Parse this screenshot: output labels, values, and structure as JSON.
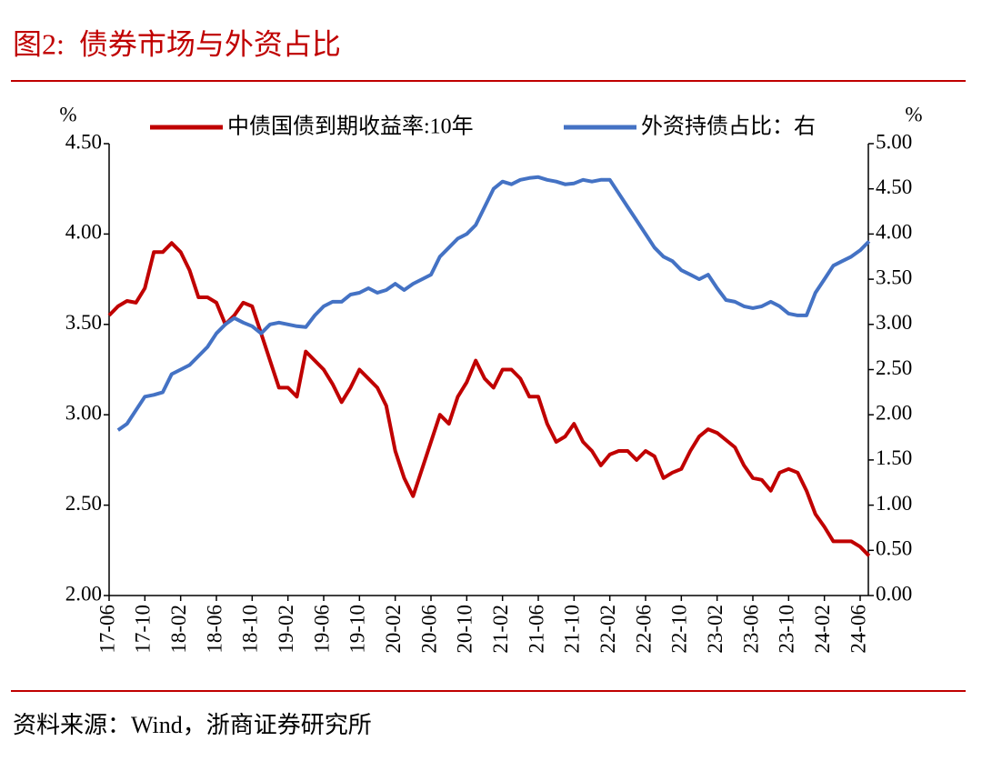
{
  "chart_data": {
    "type": "line",
    "title": "图2:  债券市场与外资占比",
    "source": "资料来源：Wind，浙商证券研究所",
    "ylabel": "%",
    "y2label": "%",
    "categories": [
      "17-06",
      null,
      null,
      null,
      "17-10",
      null,
      null,
      null,
      "18-02",
      null,
      null,
      null,
      "18-06",
      null,
      null,
      null,
      "18-10",
      null,
      null,
      null,
      "19-02",
      null,
      null,
      null,
      "19-06",
      null,
      null,
      null,
      "19-10",
      null,
      null,
      null,
      "20-02",
      null,
      null,
      null,
      "20-06",
      null,
      null,
      null,
      "20-10",
      null,
      null,
      null,
      "21-02",
      null,
      null,
      null,
      "21-06",
      null,
      null,
      null,
      "21-10",
      null,
      null,
      null,
      "22-02",
      null,
      null,
      null,
      "22-06",
      null,
      null,
      null,
      "22-10",
      null,
      null,
      null,
      "23-02",
      null,
      null,
      null,
      "23-06",
      null,
      null,
      null,
      "23-10",
      null,
      null,
      null,
      "24-02",
      null,
      null,
      null,
      "24-06",
      null
    ],
    "series": [
      {
        "name": "中债国债到期收益率:10年",
        "color": "#c00000",
        "values": [
          3.55,
          3.6,
          3.63,
          3.62,
          3.7,
          3.9,
          3.9,
          3.95,
          3.9,
          3.8,
          3.65,
          3.65,
          3.62,
          3.5,
          3.55,
          3.62,
          3.6,
          3.45,
          3.3,
          3.15,
          3.15,
          3.1,
          3.35,
          3.3,
          3.25,
          3.17,
          3.07,
          3.15,
          3.25,
          3.2,
          3.15,
          3.05,
          2.8,
          2.65,
          2.55,
          2.7,
          2.85,
          3.0,
          2.95,
          3.1,
          3.18,
          3.3,
          3.2,
          3.15,
          3.25,
          3.25,
          3.2,
          3.1,
          3.1,
          2.95,
          2.85,
          2.88,
          2.95,
          2.85,
          2.8,
          2.72,
          2.78,
          2.8,
          2.8,
          2.75,
          2.8,
          2.77,
          2.65,
          2.68,
          2.7,
          2.8,
          2.88,
          2.92,
          2.9,
          2.86,
          2.82,
          2.72,
          2.65,
          2.64,
          2.58,
          2.68,
          2.7,
          2.68,
          2.58,
          2.45,
          2.38,
          2.3,
          2.3,
          2.3,
          2.27,
          2.22
        ]
      },
      {
        "name": "外资持债占比：右",
        "color": "#4472c4",
        "axis": "y2",
        "values": [
          null,
          1.83,
          1.9,
          2.05,
          2.2,
          2.22,
          2.25,
          2.45,
          2.5,
          2.55,
          2.65,
          2.75,
          2.9,
          3.0,
          3.07,
          3.02,
          2.98,
          2.9,
          3.0,
          3.02,
          3.0,
          2.98,
          2.97,
          3.1,
          3.2,
          3.25,
          3.25,
          3.33,
          3.35,
          3.4,
          3.35,
          3.38,
          3.45,
          3.38,
          3.45,
          3.5,
          3.55,
          3.75,
          3.85,
          3.95,
          4.0,
          4.1,
          4.3,
          4.5,
          4.58,
          4.55,
          4.6,
          4.62,
          4.63,
          4.6,
          4.58,
          4.55,
          4.56,
          4.6,
          4.58,
          4.6,
          4.6,
          4.45,
          4.3,
          4.15,
          4.0,
          3.85,
          3.75,
          3.7,
          3.6,
          3.55,
          3.5,
          3.55,
          3.4,
          3.27,
          3.25,
          3.2,
          3.18,
          3.2,
          3.25,
          3.2,
          3.12,
          3.1,
          3.1,
          3.35,
          3.5,
          3.65,
          3.7,
          3.75,
          3.82,
          3.92
        ]
      }
    ],
    "ylim": [
      2.0,
      4.5
    ],
    "yticks": [
      {
        "value": 2.0,
        "label": "2.00"
      },
      {
        "value": 2.5,
        "label": "2.50"
      },
      {
        "value": 3.0,
        "label": "3.00"
      },
      {
        "value": 3.5,
        "label": "3.50"
      },
      {
        "value": 4.0,
        "label": "4.00"
      },
      {
        "value": 4.5,
        "label": "4.50"
      }
    ],
    "y2lim": [
      0,
      5
    ],
    "y2ticks": [
      {
        "value": 0,
        "label": "0.00"
      },
      {
        "value": 0.5,
        "label": "0.50"
      },
      {
        "value": 1.0,
        "label": "1.00"
      },
      {
        "value": 1.5,
        "label": "1.50"
      },
      {
        "value": 2.0,
        "label": "2.00"
      },
      {
        "value": 2.5,
        "label": "2.50"
      },
      {
        "value": 3.0,
        "label": "3.00"
      },
      {
        "value": 3.5,
        "label": "3.50"
      },
      {
        "value": 4.0,
        "label": "4.00"
      },
      {
        "value": 4.5,
        "label": "4.50"
      },
      {
        "value": 5.0,
        "label": "5.00"
      }
    ]
  }
}
